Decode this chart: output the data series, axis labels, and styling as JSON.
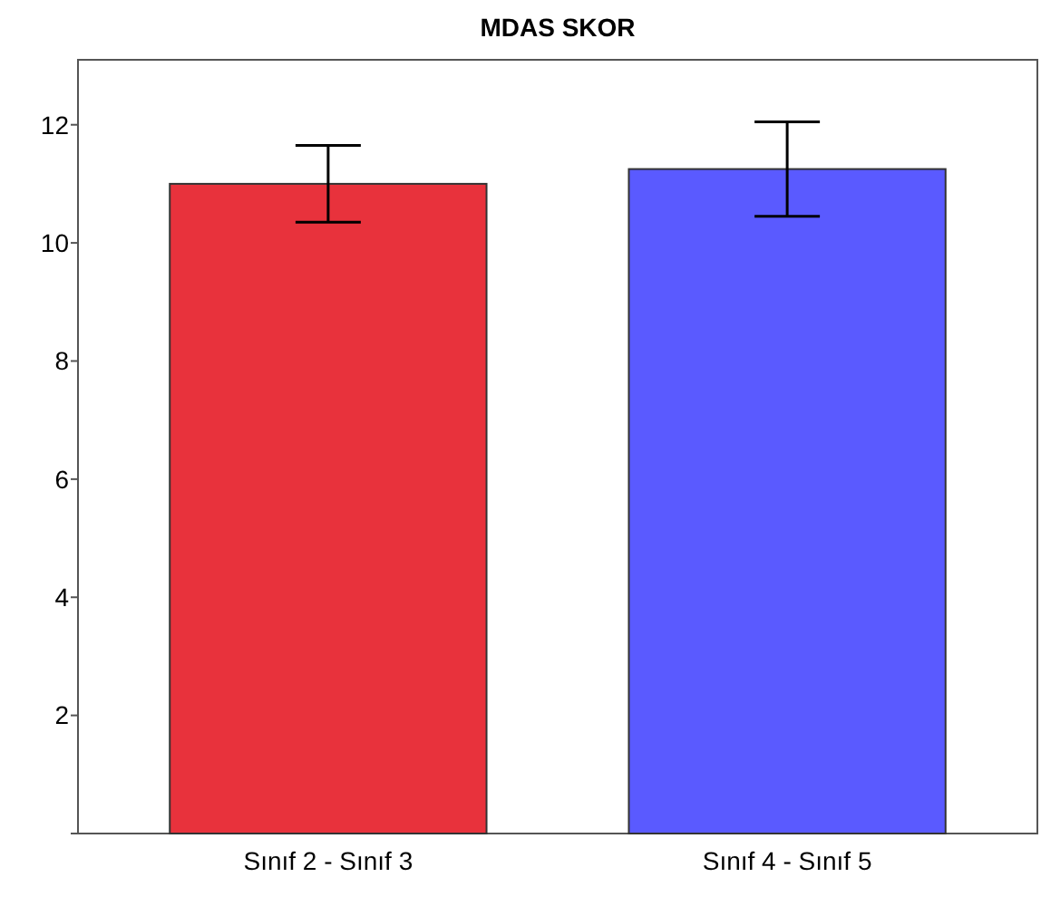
{
  "chart_data": {
    "type": "bar",
    "title": "MDAS SKOR",
    "categories": [
      "Sınıf 2 - Sınıf 3",
      "Sınıf 4 - Sınıf 5"
    ],
    "values": [
      11.0,
      11.25
    ],
    "colors": [
      "#e8323c",
      "#5a5aff"
    ],
    "errors": [
      [
        10.35,
        11.65
      ],
      [
        10.45,
        12.05
      ]
    ],
    "ylim": [
      0,
      13.1
    ],
    "yticks": [
      {
        "value": 0,
        "label": null
      },
      2,
      4,
      6,
      8,
      10,
      12
    ],
    "grid": false
  }
}
